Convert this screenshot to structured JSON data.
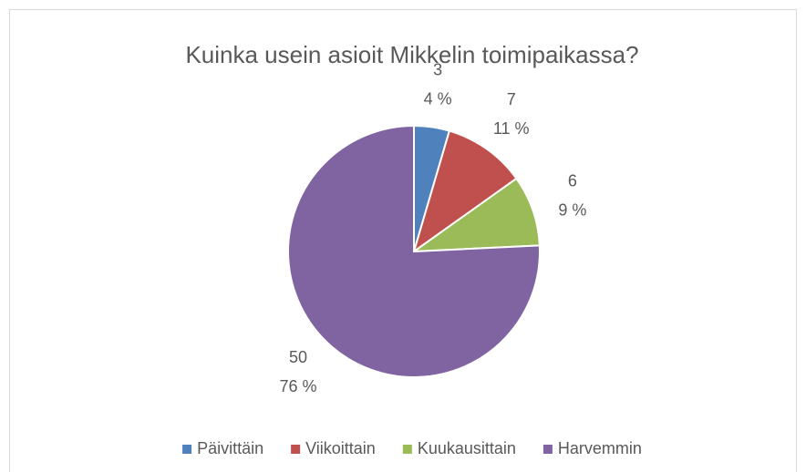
{
  "chart_data": {
    "type": "pie",
    "title": "Kuinka usein asioit Mikkelin toimipaikassa?",
    "categories": [
      "Päivittäin",
      "Viikoittain",
      "Kuukausittain",
      "Harvemmin"
    ],
    "values": [
      3,
      7,
      6,
      50
    ],
    "percent_labels": [
      "4 %",
      "11 %",
      "9 %",
      "76 %"
    ],
    "colors": [
      "#4f81bd",
      "#c0504d",
      "#9bbb59",
      "#8064a2"
    ],
    "legend": "bottom"
  }
}
